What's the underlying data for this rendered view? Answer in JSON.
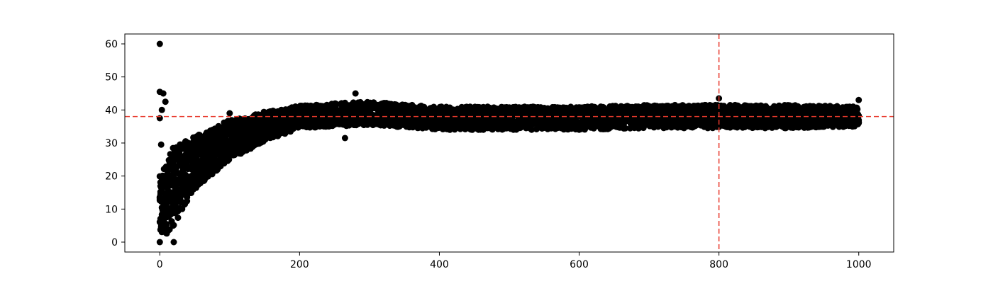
{
  "chart_data": {
    "type": "scatter",
    "title": "",
    "xlabel": "",
    "ylabel": "",
    "xlim": [
      -50,
      1050
    ],
    "ylim": [
      -3,
      63
    ],
    "xticks": [
      0,
      200,
      400,
      600,
      800,
      1000
    ],
    "yticks": [
      0,
      10,
      20,
      30,
      40,
      50,
      60
    ],
    "xtick_labels": [
      "0",
      "200",
      "400",
      "600",
      "800",
      "1000"
    ],
    "ytick_labels": [
      "0",
      "10",
      "20",
      "30",
      "40",
      "50",
      "60"
    ],
    "grid": false,
    "marker_color": "#000000",
    "reference_lines": [
      {
        "orientation": "horizontal",
        "value": 38,
        "color": "#e8392c",
        "style": "dashed"
      },
      {
        "orientation": "vertical",
        "value": 800,
        "color": "#e8392c",
        "style": "dashed"
      }
    ],
    "series": [
      {
        "name": "samples",
        "description_points": [
          {
            "x": 0,
            "y": 60
          },
          {
            "x": 0,
            "y": 45.5
          },
          {
            "x": 5,
            "y": 45
          },
          {
            "x": 8,
            "y": 42.5
          },
          {
            "x": 3,
            "y": 40
          },
          {
            "x": 0,
            "y": 37.5
          },
          {
            "x": 2,
            "y": 29.5
          },
          {
            "x": 0,
            "y": 0
          },
          {
            "x": 20,
            "y": 0
          },
          {
            "x": 100,
            "y": 39
          },
          {
            "x": 265,
            "y": 31.5
          },
          {
            "x": 280,
            "y": 45
          },
          {
            "x": 800,
            "y": 43.5
          },
          {
            "x": 1000,
            "y": 43
          }
        ],
        "band_model": {
          "x_range": [
            0,
            1000
          ],
          "count": 1001,
          "center": [
            [
              0,
              10
            ],
            [
              20,
              17
            ],
            [
              50,
              24
            ],
            [
              100,
              31
            ],
            [
              150,
              35
            ],
            [
              200,
              38
            ],
            [
              300,
              39
            ],
            [
              400,
              37.5
            ],
            [
              500,
              37.5
            ],
            [
              600,
              37.5
            ],
            [
              700,
              38
            ],
            [
              800,
              38
            ],
            [
              900,
              38
            ],
            [
              1000,
              38
            ]
          ],
          "half_width": [
            [
              0,
              10
            ],
            [
              20,
              12
            ],
            [
              50,
              8
            ],
            [
              100,
              6
            ],
            [
              150,
              4.5
            ],
            [
              200,
              3.5
            ],
            [
              300,
              3.5
            ],
            [
              400,
              3.5
            ],
            [
              600,
              3.5
            ],
            [
              800,
              3.5
            ],
            [
              900,
              3.5
            ],
            [
              1000,
              3
            ]
          ]
        }
      }
    ]
  }
}
